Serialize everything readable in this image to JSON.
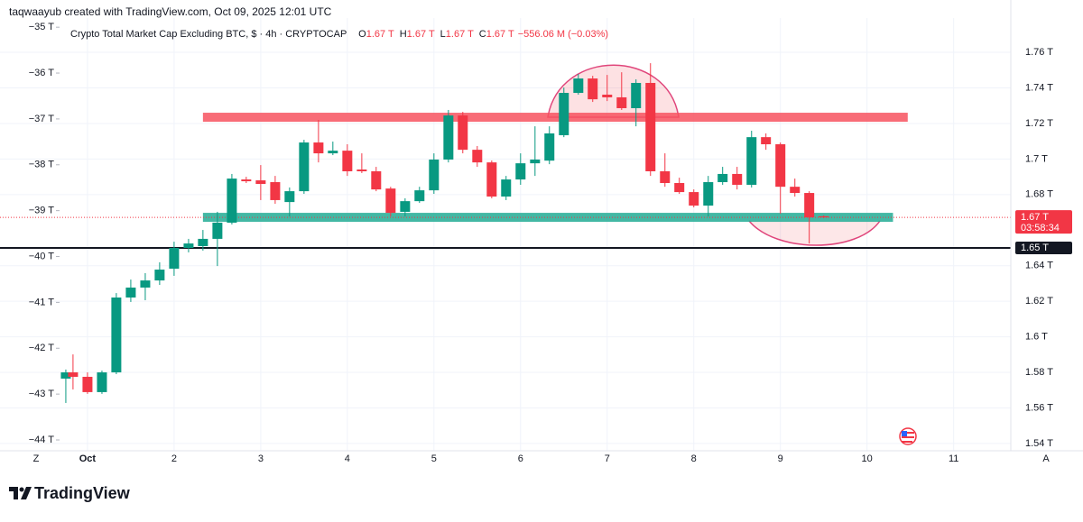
{
  "chart_data": {
    "type": "candlestick",
    "credit": "taqwaayub created with TradingView.com, Oct 09, 2025 12:01 UTC",
    "legend": {
      "title": "Crypto Total Market Cap Excluding BTC, $ · 4h · CRYPTOCAP",
      "ohlc": [
        {
          "key": "O",
          "label": "1.67 T"
        },
        {
          "key": "H",
          "label": "1.67 T"
        },
        {
          "key": "L",
          "label": "1.67 T"
        },
        {
          "key": "C",
          "label": "1.67 T"
        }
      ],
      "change": "−556.06 M (−0.03%)"
    },
    "brand": "TradingView",
    "corner_left": "Z",
    "corner_right": "A",
    "colors": {
      "up": "#089981",
      "down": "#f23645"
    },
    "grid": true,
    "x": [
      0.75,
      0.833,
      1,
      1.167,
      1.333,
      1.5,
      1.667,
      1.833,
      2,
      2.167,
      2.333,
      2.5,
      2.667,
      2.833,
      3,
      3.167,
      3.333,
      3.5,
      3.667,
      3.833,
      4,
      4.167,
      4.333,
      4.5,
      4.667,
      4.833,
      5,
      5.167,
      5.333,
      5.5,
      5.667,
      5.833,
      6,
      6.167,
      6.333,
      6.5,
      6.667,
      6.833,
      7,
      7.167,
      7.333,
      7.5,
      7.667,
      7.833,
      8,
      8.167,
      8.333,
      8.5,
      8.667,
      8.833,
      9,
      9.167,
      9.333,
      9.5
    ],
    "open": [
      1.5765,
      1.58,
      1.5775,
      1.5689,
      1.58,
      1.6221,
      1.6277,
      1.6317,
      1.6383,
      1.65,
      1.651,
      1.6551,
      1.6642,
      1.6885,
      1.688,
      1.687,
      1.6758,
      1.6819,
      1.7093,
      1.7032,
      1.7047,
      1.6941,
      1.6931,
      1.6834,
      1.6703,
      1.6763,
      1.6824,
      1.6997,
      1.7245,
      1.7052,
      1.6981,
      1.6789,
      1.6885,
      1.6976,
      1.6991,
      1.7134,
      1.7372,
      1.7453,
      1.7362,
      1.7347,
      1.7286,
      1.7428,
      1.6931,
      1.6865,
      1.6814,
      1.6738,
      1.687,
      1.6916,
      1.6855,
      1.7123,
      1.7083,
      1.6844,
      1.6809,
      1.6678
    ],
    "high": [
      1.5816,
      1.5901,
      1.58,
      1.581,
      1.6246,
      1.6322,
      1.6358,
      1.6419,
      1.6535,
      1.6551,
      1.6601,
      1.6703,
      1.6916,
      1.69,
      1.6966,
      1.6905,
      1.684,
      1.7108,
      1.722,
      1.7098,
      1.7083,
      1.7032,
      1.6956,
      1.6844,
      1.6779,
      1.6844,
      1.7032,
      1.7276,
      1.7265,
      1.7073,
      1.6992,
      1.6905,
      1.7032,
      1.7184,
      1.7184,
      1.7402,
      1.7478,
      1.7468,
      1.7473,
      1.7488,
      1.7448,
      1.7539,
      1.7032,
      1.6895,
      1.6829,
      1.6905,
      1.6956,
      1.6956,
      1.7159,
      1.7144,
      1.7093,
      1.689,
      1.6819,
      1.6683
    ],
    "low": [
      1.5628,
      1.5704,
      1.5679,
      1.5679,
      1.579,
      1.6196,
      1.6206,
      1.6292,
      1.6343,
      1.6475,
      1.6485,
      1.6398,
      1.6632,
      1.6865,
      1.6769,
      1.6748,
      1.6677,
      1.6804,
      1.6981,
      1.7022,
      1.6905,
      1.6921,
      1.6819,
      1.6677,
      1.6677,
      1.6753,
      1.6804,
      1.6981,
      1.7032,
      1.6956,
      1.6779,
      1.6769,
      1.6855,
      1.6905,
      1.6971,
      1.7123,
      1.7362,
      1.7321,
      1.7326,
      1.7276,
      1.7184,
      1.6905,
      1.6844,
      1.6804,
      1.6728,
      1.6677,
      1.6855,
      1.6829,
      1.684,
      1.7052,
      1.6692,
      1.6789,
      1.6525,
      1.6667
    ],
    "close": [
      1.58,
      1.5775,
      1.5689,
      1.58,
      1.6221,
      1.6277,
      1.6317,
      1.6378,
      1.65,
      1.6525,
      1.6551,
      1.6642,
      1.689,
      1.6875,
      1.686,
      1.6769,
      1.6819,
      1.7093,
      1.7032,
      1.7047,
      1.6931,
      1.6931,
      1.6829,
      1.6697,
      1.6763,
      1.6824,
      1.6997,
      1.7245,
      1.7052,
      1.6981,
      1.6789,
      1.6885,
      1.6976,
      1.6997,
      1.7144,
      1.7372,
      1.7453,
      1.7336,
      1.7347,
      1.7286,
      1.7428,
      1.6931,
      1.6865,
      1.6814,
      1.6738,
      1.687,
      1.6916,
      1.6855,
      1.7123,
      1.7083,
      1.6844,
      1.6809,
      1.6672,
      1.6672
    ],
    "xlim": [
      -0.01,
      11.66
    ],
    "xticks": [
      {
        "value": 1,
        "label": "Oct"
      },
      2,
      3,
      4,
      5,
      6,
      7,
      8,
      9,
      10,
      11
    ],
    "ylim": [
      1.5359,
      1.7793
    ],
    "yticks": [
      {
        "value": 1.76,
        "label": "1.76 T"
      },
      {
        "value": 1.74,
        "label": "1.74 T"
      },
      {
        "value": 1.72,
        "label": "1.72 T"
      },
      {
        "value": 1.7,
        "label": "1.7 T"
      },
      {
        "value": 1.68,
        "label": "1.68 T"
      },
      {
        "value": 1.64,
        "label": "1.64 T"
      },
      {
        "value": 1.62,
        "label": "1.62 T"
      },
      {
        "value": 1.6,
        "label": "1.6 T"
      },
      {
        "value": 1.58,
        "label": "1.58 T"
      },
      {
        "value": 1.56,
        "label": "1.56 T"
      },
      {
        "value": 1.54,
        "label": "1.54 T"
      }
    ],
    "y2lim": [
      -44.236,
      -34.8
    ],
    "y2ticks": [
      {
        "value": -35,
        "label": "−35 T"
      },
      {
        "value": -36,
        "label": "−36 T"
      },
      {
        "value": -37,
        "label": "−37 T"
      },
      {
        "value": -38,
        "label": "−38 T"
      },
      {
        "value": -39,
        "label": "−39 T"
      },
      {
        "value": -40,
        "label": "−40 T"
      },
      {
        "value": -41,
        "label": "−41 T"
      },
      {
        "value": -42,
        "label": "−42 T"
      },
      {
        "value": -43,
        "label": "−43 T"
      },
      {
        "value": -44,
        "label": "−44 T"
      }
    ],
    "bands": [
      {
        "value": 1.7235,
        "from": 2.333,
        "to": 10.47,
        "color": "#f7525f"
      },
      {
        "value": 1.6672,
        "from": 2.333,
        "to": 10.3,
        "color": "#22ab94"
      }
    ],
    "horizontal_line": {
      "value": 1.65,
      "color": "#131722"
    },
    "price_labels": [
      {
        "value": 1.6672,
        "label": "1.67 T",
        "timer": "03:58:34",
        "color": "#f23645"
      },
      {
        "value": 1.65,
        "label": "1.65 T",
        "color": "#131722"
      }
    ]
  }
}
